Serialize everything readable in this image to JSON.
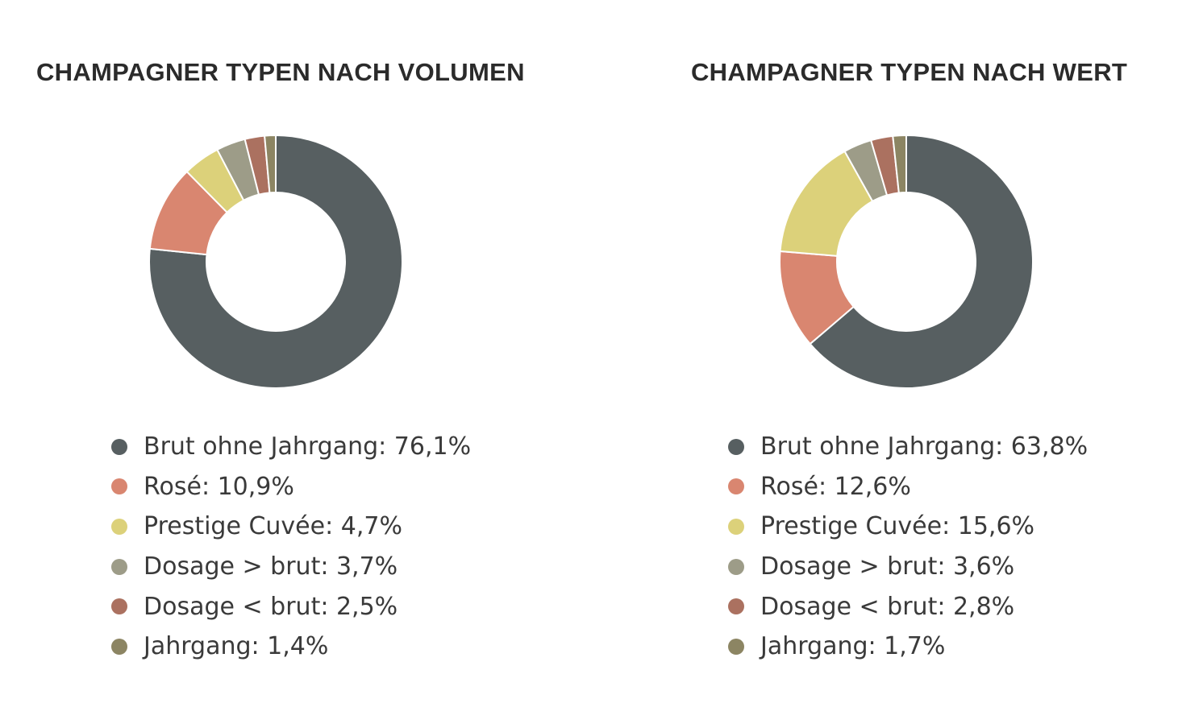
{
  "chart_data": [
    {
      "type": "pie",
      "variant": "donut",
      "title": "CHAMPAGNER TYPEN NACH VOLUMEN",
      "legend_position": "bottom",
      "slices": [
        {
          "label": "Brut ohne Jahrgang: 76,1%",
          "name": "Brut ohne Jahrgang",
          "value": 76.1,
          "color": "#575f61"
        },
        {
          "label": "Rosé: 10,9%",
          "name": "Rosé",
          "value": 10.9,
          "color": "#d98670"
        },
        {
          "label": "Prestige Cuvée: 4,7%",
          "name": "Prestige Cuvée",
          "value": 4.7,
          "color": "#dcd17a"
        },
        {
          "label": "Dosage > brut: 3,7%",
          "name": "Dosage > brut",
          "value": 3.7,
          "color": "#9d9c88"
        },
        {
          "label": "Dosage < brut: 2,5%",
          "name": "Dosage < brut",
          "value": 2.5,
          "color": "#ab7160"
        },
        {
          "label": "Jahrgang: 1,4%",
          "name": "Jahrgang",
          "value": 1.4,
          "color": "#8c8563"
        }
      ]
    },
    {
      "type": "pie",
      "variant": "donut",
      "title": "CHAMPAGNER TYPEN NACH WERT",
      "legend_position": "bottom",
      "slices": [
        {
          "label": "Brut ohne Jahrgang: 63,8%",
          "name": "Brut ohne Jahrgang",
          "value": 63.8,
          "color": "#575f61"
        },
        {
          "label": "Rosé: 12,6%",
          "name": "Rosé",
          "value": 12.6,
          "color": "#d98670"
        },
        {
          "label": "Prestige Cuvée: 15,6%",
          "name": "Prestige Cuvée",
          "value": 15.6,
          "color": "#dcd17a"
        },
        {
          "label": "Dosage > brut: 3,6%",
          "name": "Dosage > brut",
          "value": 3.6,
          "color": "#9d9c88"
        },
        {
          "label": "Dosage < brut: 2,8%",
          "name": "Dosage < brut",
          "value": 2.8,
          "color": "#ab7160"
        },
        {
          "label": "Jahrgang: 1,7%",
          "name": "Jahrgang",
          "value": 1.7,
          "color": "#8c8563"
        }
      ]
    }
  ]
}
